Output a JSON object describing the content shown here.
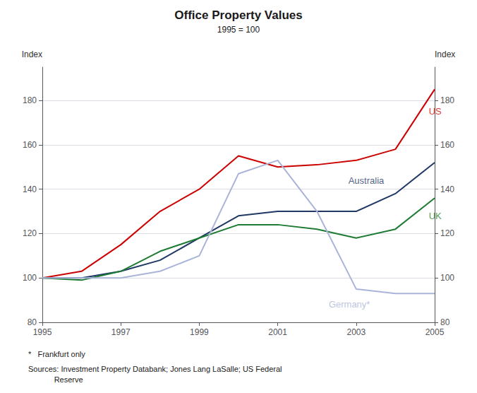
{
  "chart_data": {
    "type": "line",
    "title": "Office Property Values",
    "subtitle": "1995 = 100",
    "ylabel": "Index",
    "y2label": "Index",
    "footnotes": [
      "*   Frankfurt only",
      "Sources: Investment Property Databank; Jones Lang LaSalle; US Federal\n            Reserve"
    ],
    "x": [
      1995,
      1996,
      1997,
      1998,
      1999,
      2000,
      2001,
      2002,
      2003,
      2004,
      2005
    ],
    "xlim": [
      1995,
      2005
    ],
    "xticks": [
      1995,
      1997,
      1999,
      2001,
      2003,
      2005
    ],
    "ylim": [
      80,
      195
    ],
    "yticks": [
      80,
      100,
      120,
      140,
      160,
      180
    ],
    "y2lim": [
      80,
      195
    ],
    "y2ticks": [
      80,
      100,
      120,
      140,
      160,
      180
    ],
    "grid": true,
    "series": [
      {
        "name": "US",
        "color": "#cc0000",
        "values": [
          100,
          103,
          115,
          130,
          140,
          155,
          150,
          151,
          153,
          158,
          185
        ]
      },
      {
        "name": "Australia",
        "color": "#1f3864",
        "values": [
          100,
          100,
          103,
          108,
          118,
          128,
          130,
          130,
          130,
          138,
          152
        ]
      },
      {
        "name": "UK",
        "color": "#1e7b34",
        "values": [
          100,
          99,
          103,
          112,
          118,
          124,
          124,
          122,
          118,
          122,
          136
        ]
      },
      {
        "name": "Germany*",
        "color": "#aab4d8",
        "values": [
          100,
          100,
          100,
          103,
          110,
          147,
          153,
          130,
          95,
          93,
          93
        ]
      }
    ],
    "annotations": [
      {
        "text": "US",
        "x": 2004.85,
        "y": 175,
        "color": "#cc0000"
      },
      {
        "text": "Australia",
        "x": 2002.8,
        "y": 144,
        "color": "#1f3864"
      },
      {
        "text": "UK",
        "x": 2004.85,
        "y": 128,
        "color": "#1e7b34"
      },
      {
        "text": "Germany*",
        "x": 2002.3,
        "y": 88,
        "color": "#aab4d8"
      }
    ]
  }
}
